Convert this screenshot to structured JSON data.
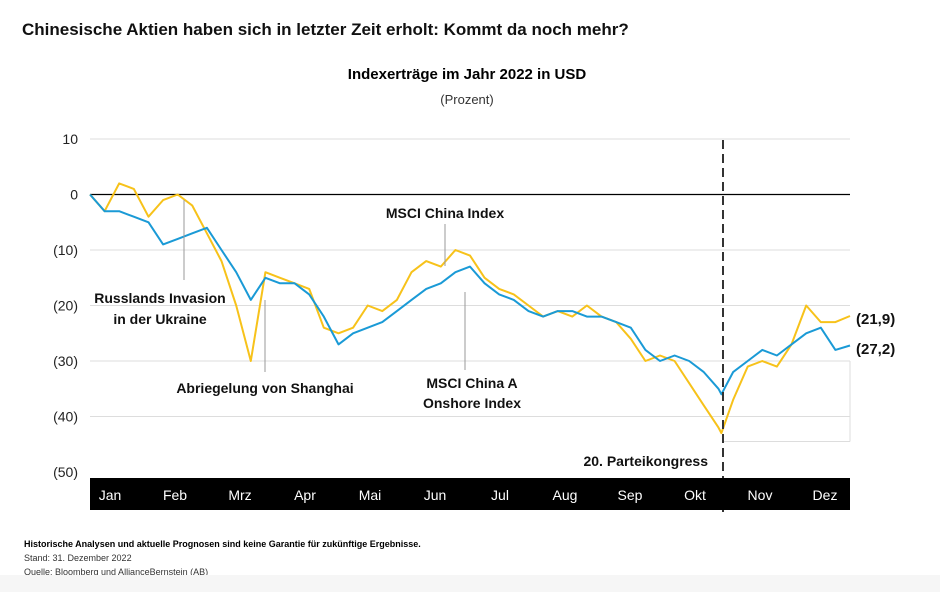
{
  "headline": "Chinesische Aktien haben sich in letzter Zeit erholt: Kommt da noch mehr?",
  "chart_data": {
    "type": "line",
    "title": "Indexerträge im Jahr 2022 in USD",
    "subtitle": "(Prozent)",
    "ylim": [
      -50,
      10
    ],
    "yticks": [
      10,
      0,
      -10,
      -20,
      -30,
      -40,
      -50
    ],
    "ytick_labels": [
      "10",
      "0",
      "(10)",
      "(20)",
      "(30)",
      "(40)",
      "(50)"
    ],
    "xlim": [
      0,
      52
    ],
    "xunit": "week of 2022",
    "categories": [
      "Jan",
      "Feb",
      "Mrz",
      "Apr",
      "Mai",
      "Jun",
      "Jul",
      "Aug",
      "Sep",
      "Okt",
      "Nov",
      "Dez"
    ],
    "series": [
      {
        "name": "MSCI China Index",
        "color": "#f7c21a",
        "end_label": "(21,9)",
        "x": [
          0,
          1,
          2,
          3,
          4,
          5,
          6,
          7,
          8,
          9,
          10,
          11,
          12,
          13,
          14,
          15,
          16,
          17,
          18,
          19,
          20,
          21,
          22,
          23,
          24,
          25,
          26,
          27,
          28,
          29,
          30,
          31,
          32,
          33,
          34,
          35,
          36,
          37,
          38,
          39,
          40,
          41,
          42,
          43,
          43.2,
          44,
          45,
          46,
          47,
          48,
          49,
          50,
          51,
          52
        ],
        "y": [
          0,
          -3,
          2,
          1,
          -4,
          -1,
          0,
          -2,
          -7,
          -12,
          -20,
          -30,
          -14,
          -15,
          -16,
          -17,
          -24,
          -25,
          -24,
          -20,
          -21,
          -19,
          -14,
          -12,
          -13,
          -10,
          -11,
          -15,
          -17,
          -18,
          -20,
          -22,
          -21,
          -22,
          -20,
          -22,
          -23,
          -26,
          -30,
          -29,
          -30,
          -34,
          -38,
          -42,
          -43,
          -37,
          -31,
          -30,
          -31,
          -27,
          -20,
          -23,
          -23,
          -21.9
        ]
      },
      {
        "name": "MSCI China A Onshore Index",
        "color": "#1a9ad6",
        "end_label": "(27,2)",
        "x": [
          0,
          1,
          2,
          3,
          4,
          5,
          6,
          7,
          8,
          9,
          10,
          11,
          12,
          13,
          14,
          15,
          16,
          17,
          18,
          19,
          20,
          21,
          22,
          23,
          24,
          25,
          26,
          27,
          28,
          29,
          30,
          31,
          32,
          33,
          34,
          35,
          36,
          37,
          38,
          39,
          40,
          41,
          42,
          43,
          43.2,
          44,
          45,
          46,
          47,
          48,
          49,
          50,
          51,
          52
        ],
        "y": [
          0,
          -3,
          -3,
          -4,
          -5,
          -9,
          -8,
          -7,
          -6,
          -10,
          -14,
          -19,
          -15,
          -16,
          -16,
          -18,
          -22,
          -27,
          -25,
          -24,
          -23,
          -21,
          -19,
          -17,
          -16,
          -14,
          -13,
          -16,
          -18,
          -19,
          -21,
          -22,
          -21,
          -21,
          -22,
          -22,
          -23,
          -24,
          -28,
          -30,
          -29,
          -30,
          -32,
          -35,
          -36,
          -32,
          -30,
          -28,
          -29,
          -27,
          -25,
          -24,
          -28,
          -27.2
        ]
      }
    ],
    "annotations": {
      "invasion_1": "Russlands Invasion",
      "invasion_2": "in der Ukraine",
      "shanghai": "Abriegelung von Shanghai",
      "china_index": "MSCI China Index",
      "china_a_1": "MSCI China A",
      "china_a_2": "Onshore Index",
      "party": "20. Parteikongress"
    }
  },
  "footer": {
    "disclaimer": "Historische Analysen und aktuelle Prognosen sind keine Garantie für zukünftige Ergebnisse.",
    "date": "Stand: 31. Dezember 2022",
    "source": "Quelle: Bloomberg und AllianceBernstein (AB)"
  }
}
